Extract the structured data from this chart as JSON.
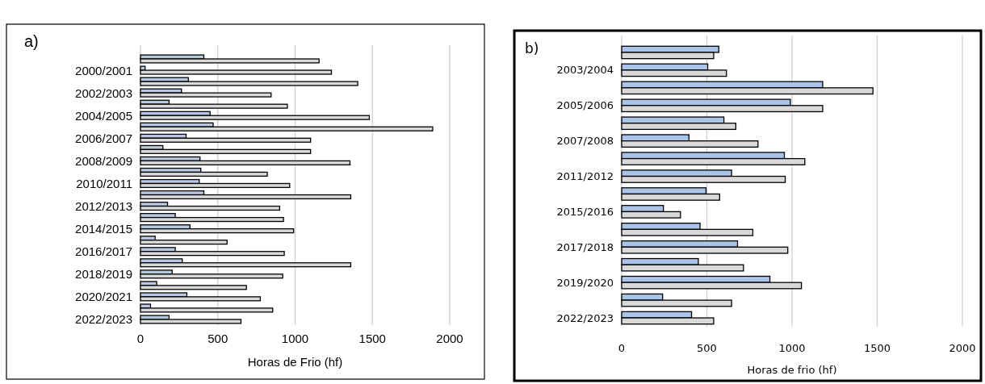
{
  "chart_data": [
    {
      "type": "bar",
      "title": "a)",
      "xlabel": "Horas de Frio (hf)",
      "orientation": "horizontal",
      "grid": "x",
      "categories": [
        null,
        "2000/2001",
        null,
        "2002/2003",
        null,
        "2004/2005",
        null,
        "2006/2007",
        null,
        "2008/2009",
        null,
        "2010/2011",
        null,
        "2012/2013",
        null,
        "2014/2015",
        null,
        "2016/2017",
        null,
        "2018/2019",
        null,
        "2020/2021",
        null,
        "2022/2023"
      ],
      "xlim": [
        0,
        2000
      ],
      "xticks": [
        0,
        500,
        1000,
        1500,
        2000
      ],
      "series": [
        {
          "color": "#b8c8e0",
          "values": [
            410,
            30,
            310,
            265,
            185,
            450,
            470,
            295,
            145,
            385,
            390,
            380,
            410,
            175,
            225,
            320,
            95,
            225,
            270,
            205,
            105,
            300,
            65,
            185
          ]
        },
        {
          "color": "#d9d9d9",
          "values": [
            1155,
            1235,
            1405,
            845,
            950,
            1480,
            1890,
            1100,
            1100,
            1355,
            820,
            965,
            1360,
            900,
            925,
            990,
            560,
            930,
            1360,
            920,
            685,
            775,
            855,
            650
          ]
        }
      ]
    },
    {
      "type": "bar",
      "title": "b)",
      "xlabel": "Horas de frio (hf)",
      "orientation": "horizontal",
      "grid": "x",
      "categories": [
        null,
        "2003/2004",
        null,
        "2005/2006",
        null,
        "2007/2008",
        null,
        "2011/2012",
        null,
        "2015/2016",
        null,
        "2017/2018",
        null,
        "2019/2020",
        null,
        "2022/2023"
      ],
      "xlim": [
        0,
        2000
      ],
      "xticks": [
        0,
        500,
        1000,
        1500,
        2000
      ],
      "series": [
        {
          "color": "#a9c4e8",
          "values": [
            570,
            505,
            1180,
            990,
            600,
            395,
            955,
            645,
            495,
            245,
            460,
            680,
            450,
            870,
            240,
            410
          ]
        },
        {
          "color": "#d9d9d9",
          "values": [
            540,
            615,
            1475,
            1180,
            670,
            800,
            1075,
            960,
            575,
            345,
            770,
            975,
            715,
            1055,
            645,
            540
          ]
        }
      ]
    }
  ]
}
